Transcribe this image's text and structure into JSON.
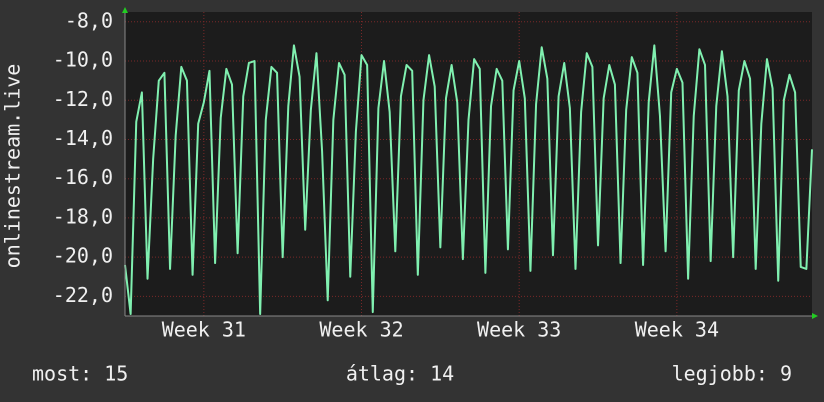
{
  "chart_data": {
    "type": "line",
    "y_label": "onlinestream.live",
    "color": "#80f0b0",
    "grid": true,
    "ylim": [
      -23.0,
      -7.5
    ],
    "yticks": [
      {
        "value": -8,
        "label": "-8,0"
      },
      {
        "value": -10,
        "label": "-10,0"
      },
      {
        "value": -12,
        "label": "-12,0"
      },
      {
        "value": -14,
        "label": "-14,0"
      },
      {
        "value": -16,
        "label": "-16,0"
      },
      {
        "value": -18,
        "label": "-18,0"
      },
      {
        "value": -20,
        "label": "-20,0"
      },
      {
        "value": -22,
        "label": "-22,0"
      }
    ],
    "categories": [
      null,
      null,
      null,
      null,
      null,
      null,
      null,
      null,
      null,
      null,
      null,
      null,
      null,
      null,
      "Week 31",
      null,
      null,
      null,
      null,
      null,
      null,
      null,
      null,
      null,
      null,
      null,
      null,
      null,
      null,
      null,
      null,
      null,
      null,
      null,
      null,
      null,
      null,
      null,
      null,
      null,
      null,
      null,
      "Week 32",
      null,
      null,
      null,
      null,
      null,
      null,
      null,
      null,
      null,
      null,
      null,
      null,
      null,
      null,
      null,
      null,
      null,
      null,
      null,
      null,
      null,
      null,
      null,
      null,
      null,
      null,
      null,
      "Week 33",
      null,
      null,
      null,
      null,
      null,
      null,
      null,
      null,
      null,
      null,
      null,
      null,
      null,
      null,
      null,
      null,
      null,
      null,
      null,
      null,
      null,
      null,
      null,
      null,
      null,
      null,
      null,
      "Week 34",
      null,
      null,
      null,
      null,
      null,
      null,
      null,
      null,
      null,
      null,
      null,
      null,
      null,
      null,
      null,
      null,
      null,
      null,
      null,
      null,
      null,
      null,
      null,
      null
    ],
    "values": [
      -20.4,
      -22.9,
      -13.1,
      -11.6,
      -21.1,
      -15.0,
      -11.0,
      -10.6,
      -20.6,
      -13.8,
      -10.3,
      -11.0,
      -20.9,
      -13.2,
      -12.1,
      -10.5,
      -20.3,
      -12.9,
      -10.4,
      -11.2,
      -19.8,
      -11.8,
      -10.1,
      -10.0,
      -22.9,
      -13.0,
      -10.3,
      -10.6,
      -20.0,
      -12.3,
      -9.2,
      -10.8,
      -18.6,
      -12.5,
      -9.6,
      -14.6,
      -22.2,
      -13.0,
      -10.1,
      -10.7,
      -21.0,
      -13.6,
      -9.7,
      -10.2,
      -22.8,
      -12.4,
      -10.0,
      -12.6,
      -19.7,
      -11.8,
      -10.2,
      -10.5,
      -20.9,
      -12.0,
      -9.7,
      -11.3,
      -19.5,
      -11.9,
      -10.2,
      -12.1,
      -20.1,
      -13.0,
      -9.9,
      -10.4,
      -20.8,
      -12.3,
      -10.4,
      -11.0,
      -19.6,
      -11.5,
      -10.0,
      -11.9,
      -20.7,
      -12.2,
      -9.3,
      -10.9,
      -19.9,
      -11.8,
      -10.1,
      -12.4,
      -20.6,
      -12.6,
      -9.6,
      -10.3,
      -19.4,
      -11.9,
      -10.2,
      -11.2,
      -20.3,
      -12.5,
      -9.8,
      -10.6,
      -20.4,
      -12.1,
      -9.2,
      -12.8,
      -19.7,
      -11.6,
      -10.4,
      -11.1,
      -21.1,
      -12.8,
      -9.4,
      -10.2,
      -20.2,
      -12.3,
      -9.5,
      -11.8,
      -20.0,
      -11.5,
      -10.0,
      -10.9,
      -20.6,
      -13.2,
      -9.9,
      -11.4,
      -21.2,
      -12.0,
      -10.7,
      -11.6,
      -20.5,
      -20.6,
      -14.5
    ],
    "footer": [
      "most: 15",
      "átlag: 14",
      "legjobb: 9"
    ]
  }
}
